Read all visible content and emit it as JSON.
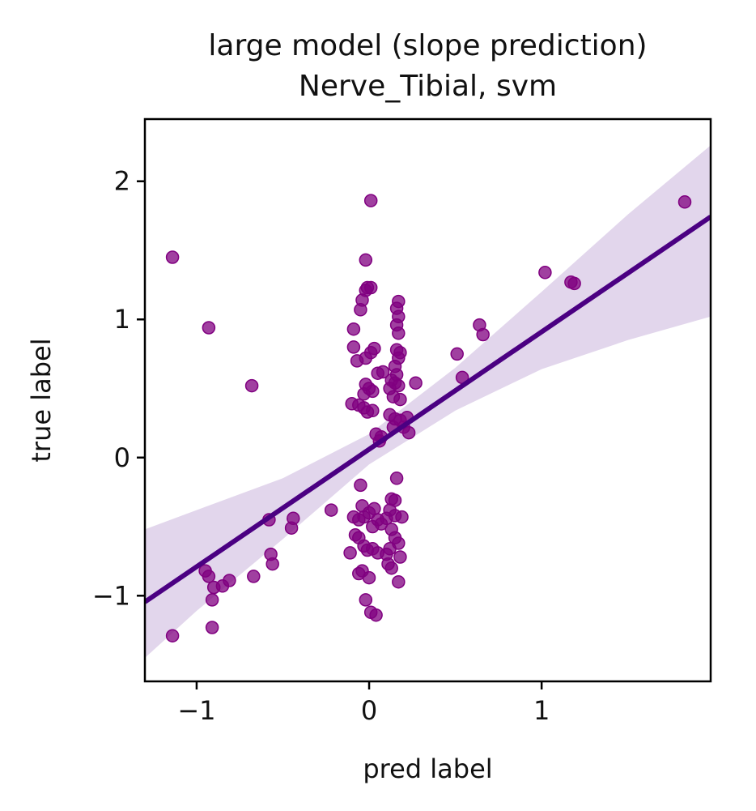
{
  "chart_data": {
    "type": "scatter",
    "title": "large model (slope prediction)",
    "subtitle": "Nerve_Tibial, svm",
    "xlabel": "pred label",
    "ylabel": "true label",
    "xlim": [
      -1.3,
      1.98
    ],
    "ylim": [
      -1.62,
      2.45
    ],
    "xticks": [
      -1,
      0,
      1
    ],
    "xtick_labels": [
      "−1",
      "0",
      "1"
    ],
    "yticks": [
      -1,
      0,
      1,
      2
    ],
    "ytick_labels": [
      "−1",
      "0",
      "1",
      "2"
    ],
    "grid": false,
    "legend": "none",
    "colors": {
      "points": "#800080",
      "line": "#4b0082",
      "band": "#d8c8e6"
    },
    "points": [
      [
        -1.14,
        1.45
      ],
      [
        -0.93,
        0.94
      ],
      [
        -0.68,
        0.52
      ],
      [
        0.01,
        1.86
      ],
      [
        1.83,
        1.85
      ],
      [
        1.02,
        1.34
      ],
      [
        1.17,
        1.27
      ],
      [
        1.19,
        1.26
      ],
      [
        0.64,
        0.96
      ],
      [
        0.66,
        0.89
      ],
      [
        0.51,
        0.75
      ],
      [
        0.54,
        0.58
      ],
      [
        0.27,
        0.54
      ],
      [
        -0.02,
        1.43
      ],
      [
        -0.02,
        1.21
      ],
      [
        -0.01,
        1.23
      ],
      [
        0.01,
        1.23
      ],
      [
        -0.04,
        1.14
      ],
      [
        -0.05,
        1.07
      ],
      [
        -0.09,
        0.93
      ],
      [
        -0.09,
        0.8
      ],
      [
        -0.07,
        0.7
      ],
      [
        -0.02,
        0.72
      ],
      [
        0.01,
        0.76
      ],
      [
        0.03,
        0.79
      ],
      [
        0.05,
        0.61
      ],
      [
        0.08,
        0.62
      ],
      [
        -0.02,
        0.53
      ],
      [
        0.0,
        0.5
      ],
      [
        0.02,
        0.48
      ],
      [
        -0.03,
        0.46
      ],
      [
        -0.1,
        0.39
      ],
      [
        -0.06,
        0.38
      ],
      [
        -0.03,
        0.36
      ],
      [
        -0.01,
        0.33
      ],
      [
        0.02,
        0.34
      ],
      [
        0.04,
        0.17
      ],
      [
        0.07,
        0.15
      ],
      [
        0.06,
        0.12
      ],
      [
        0.17,
        1.13
      ],
      [
        0.16,
        1.08
      ],
      [
        0.17,
        1.02
      ],
      [
        0.16,
        0.96
      ],
      [
        0.17,
        0.9
      ],
      [
        0.16,
        0.78
      ],
      [
        0.18,
        0.76
      ],
      [
        0.17,
        0.72
      ],
      [
        0.15,
        0.66
      ],
      [
        0.16,
        0.6
      ],
      [
        0.13,
        0.56
      ],
      [
        0.15,
        0.54
      ],
      [
        0.17,
        0.52
      ],
      [
        0.12,
        0.5
      ],
      [
        0.14,
        0.44
      ],
      [
        0.18,
        0.42
      ],
      [
        0.12,
        0.31
      ],
      [
        0.15,
        0.28
      ],
      [
        0.18,
        0.27
      ],
      [
        0.22,
        0.29
      ],
      [
        0.14,
        0.22
      ],
      [
        0.2,
        0.22
      ],
      [
        0.23,
        0.18
      ],
      [
        -0.05,
        -0.2
      ],
      [
        -0.04,
        -0.35
      ],
      [
        -0.09,
        -0.43
      ],
      [
        -0.06,
        -0.45
      ],
      [
        -0.03,
        -0.43
      ],
      [
        0.0,
        -0.4
      ],
      [
        0.03,
        -0.37
      ],
      [
        0.05,
        -0.45
      ],
      [
        0.07,
        -0.48
      ],
      [
        0.02,
        -0.5
      ],
      [
        -0.08,
        -0.56
      ],
      [
        -0.06,
        -0.58
      ],
      [
        -0.03,
        -0.64
      ],
      [
        -0.01,
        -0.67
      ],
      [
        0.02,
        -0.66
      ],
      [
        0.05,
        -0.69
      ],
      [
        -0.11,
        -0.69
      ],
      [
        -0.04,
        -0.82
      ],
      [
        -0.06,
        -0.84
      ],
      [
        0.0,
        -0.87
      ],
      [
        -0.02,
        -1.03
      ],
      [
        0.01,
        -1.12
      ],
      [
        0.04,
        -1.14
      ],
      [
        0.13,
        -0.3
      ],
      [
        0.15,
        -0.31
      ],
      [
        0.16,
        -0.15
      ],
      [
        0.12,
        -0.38
      ],
      [
        0.15,
        -0.42
      ],
      [
        0.19,
        -0.43
      ],
      [
        0.1,
        -0.44
      ],
      [
        0.13,
        -0.52
      ],
      [
        0.15,
        -0.58
      ],
      [
        0.17,
        -0.62
      ],
      [
        0.12,
        -0.66
      ],
      [
        0.1,
        -0.7
      ],
      [
        0.18,
        -0.72
      ],
      [
        0.11,
        -0.77
      ],
      [
        0.13,
        -0.8
      ],
      [
        0.17,
        -0.9
      ],
      [
        -0.22,
        -0.38
      ],
      [
        -0.58,
        -0.45
      ],
      [
        -0.44,
        -0.44
      ],
      [
        -0.45,
        -0.51
      ],
      [
        -0.57,
        -0.7
      ],
      [
        -0.56,
        -0.77
      ],
      [
        -0.67,
        -0.86
      ],
      [
        -0.95,
        -0.82
      ],
      [
        -0.93,
        -0.86
      ],
      [
        -0.81,
        -0.89
      ],
      [
        -0.85,
        -0.93
      ],
      [
        -0.9,
        -0.94
      ],
      [
        -0.91,
        -1.03
      ],
      [
        -0.91,
        -1.23
      ],
      [
        -1.14,
        -1.29
      ]
    ],
    "regression": {
      "slope": 0.85,
      "intercept": 0.06
    },
    "confidence_band": [
      {
        "x": -1.3,
        "lo": -1.45,
        "hi": -0.52
      },
      {
        "x": -1.0,
        "lo": -1.11,
        "hi": -0.38
      },
      {
        "x": -0.5,
        "lo": -0.59,
        "hi": -0.15
      },
      {
        "x": 0.0,
        "lo": -0.05,
        "hi": 0.17
      },
      {
        "x": 0.5,
        "lo": 0.34,
        "hi": 0.65
      },
      {
        "x": 1.0,
        "lo": 0.64,
        "hi": 1.2
      },
      {
        "x": 1.5,
        "lo": 0.85,
        "hi": 1.76
      },
      {
        "x": 1.98,
        "lo": 1.02,
        "hi": 2.26
      }
    ]
  }
}
